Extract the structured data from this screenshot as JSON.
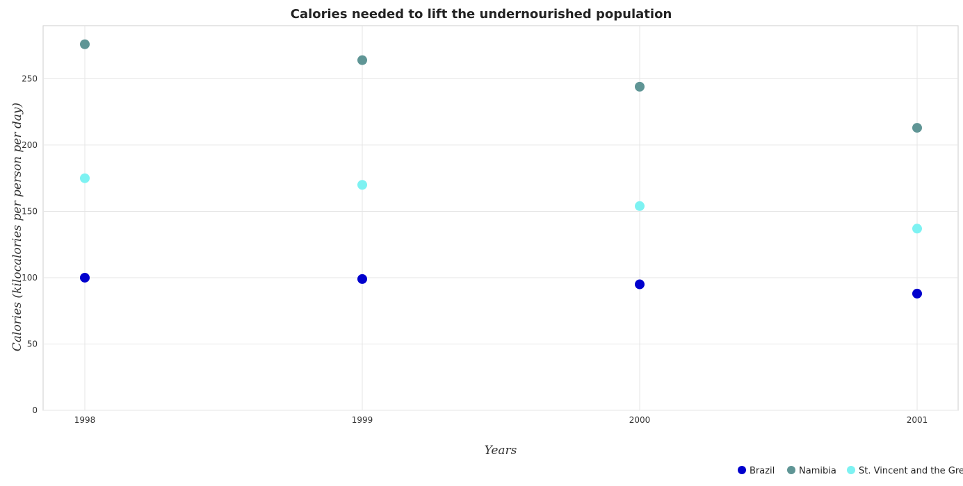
{
  "chart_data": {
    "type": "scatter",
    "title": "Calories needed to lift the undernourished population",
    "xlabel": "Years",
    "ylabel": "Calories (kilocalories per person per day)",
    "categories": [
      "1998",
      "1999",
      "2000",
      "2001"
    ],
    "ylim": [
      0,
      290
    ],
    "yticks": [
      0,
      50,
      100,
      150,
      200,
      250
    ],
    "grid": true,
    "legend_position": "bottom-right",
    "series": [
      {
        "name": "Brazil",
        "color": "#0000cd",
        "values": [
          100,
          99,
          95,
          88
        ]
      },
      {
        "name": "Namibia",
        "color": "#5f9595",
        "values": [
          276,
          264,
          244,
          213
        ]
      },
      {
        "name": "St. Vincent and the Grenadines",
        "color": "#7df2f2",
        "values": [
          175,
          170,
          154,
          137
        ]
      }
    ]
  }
}
